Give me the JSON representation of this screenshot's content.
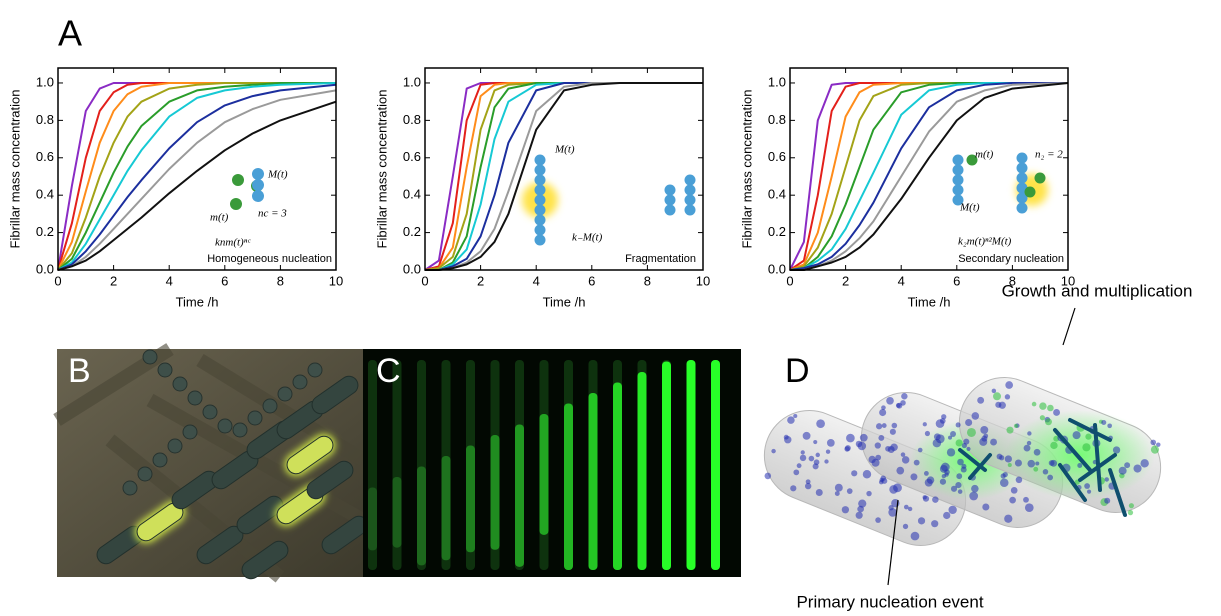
{
  "chart_data": [
    {
      "type": "line",
      "xlabel": "Time /h",
      "ylabel": "Fibrillar mass concentration",
      "x": [
        0,
        0.5,
        1,
        1.5,
        2,
        2.5,
        3,
        4,
        5,
        6,
        7,
        8,
        10
      ],
      "xlim": [
        0,
        10
      ],
      "ylim": [
        0,
        1.08
      ],
      "xticks": [
        0,
        2,
        4,
        6,
        8,
        10
      ],
      "yticks": [
        {
          "value": 0,
          "label": "0.0"
        },
        0.2,
        0.4,
        0.6,
        0.8,
        {
          "value": 1,
          "label": "1.0"
        }
      ],
      "annotations": [
        "M(t)",
        "m(t)",
        "nc = 3",
        "knm(t)ⁿᶜ",
        "Homogeneous nucleation"
      ],
      "series": [
        {
          "color": "#8a2bc4",
          "values": [
            0,
            0.45,
            0.85,
            0.97,
            1,
            1,
            1,
            1,
            1,
            1,
            1,
            1,
            1
          ]
        },
        {
          "color": "#e3201b",
          "values": [
            0,
            0.25,
            0.6,
            0.85,
            0.95,
            0.99,
            1,
            1,
            1,
            1,
            1,
            1,
            1
          ]
        },
        {
          "color": "#ff8c1a",
          "values": [
            0,
            0.15,
            0.42,
            0.68,
            0.85,
            0.94,
            0.98,
            1,
            1,
            1,
            1,
            1,
            1
          ]
        },
        {
          "color": "#a3a317",
          "values": [
            0,
            0.09,
            0.28,
            0.5,
            0.68,
            0.82,
            0.9,
            0.97,
            0.99,
            1,
            1,
            1,
            1
          ]
        },
        {
          "color": "#2a9d2a",
          "values": [
            0,
            0.06,
            0.2,
            0.36,
            0.52,
            0.66,
            0.77,
            0.9,
            0.96,
            0.98,
            0.99,
            1,
            1
          ]
        },
        {
          "color": "#16c9d4",
          "values": [
            0,
            0.04,
            0.14,
            0.27,
            0.4,
            0.53,
            0.64,
            0.82,
            0.92,
            0.96,
            0.98,
            0.99,
            1
          ]
        },
        {
          "color": "#1c2f9e",
          "values": [
            0,
            0.03,
            0.1,
            0.19,
            0.29,
            0.39,
            0.48,
            0.65,
            0.79,
            0.88,
            0.93,
            0.96,
            0.99
          ]
        },
        {
          "color": "#9a9a9a",
          "values": [
            0,
            0.02,
            0.07,
            0.14,
            0.22,
            0.3,
            0.38,
            0.54,
            0.68,
            0.79,
            0.86,
            0.91,
            0.96
          ]
        },
        {
          "color": "#111111",
          "values": [
            0,
            0.02,
            0.05,
            0.1,
            0.16,
            0.22,
            0.28,
            0.41,
            0.53,
            0.64,
            0.73,
            0.8,
            0.9
          ]
        }
      ]
    },
    {
      "type": "line",
      "xlabel": "Time /h",
      "ylabel": "Fibrillar mass concentration",
      "x": [
        0,
        0.5,
        1,
        1.5,
        2,
        2.5,
        3,
        4,
        5,
        6,
        7,
        8,
        10
      ],
      "xlim": [
        0,
        10
      ],
      "ylim": [
        0,
        1.08
      ],
      "xticks": [
        0,
        2,
        4,
        6,
        8,
        10
      ],
      "yticks": [
        {
          "value": 0,
          "label": "0.0"
        },
        0.2,
        0.4,
        0.6,
        0.8,
        {
          "value": 1,
          "label": "1.0"
        }
      ],
      "annotations": [
        "M(t)",
        "k₋M(t)",
        "Fragmentation"
      ],
      "series": [
        {
          "color": "#8a2bc4",
          "values": [
            0,
            0.05,
            0.5,
            0.97,
            1,
            1,
            1,
            1,
            1,
            1,
            1,
            1,
            1
          ]
        },
        {
          "color": "#e3201b",
          "values": [
            0,
            0.02,
            0.25,
            0.8,
            0.99,
            1,
            1,
            1,
            1,
            1,
            1,
            1,
            1
          ]
        },
        {
          "color": "#ff8c1a",
          "values": [
            0,
            0.01,
            0.12,
            0.55,
            0.93,
            0.99,
            1,
            1,
            1,
            1,
            1,
            1,
            1
          ]
        },
        {
          "color": "#a3a317",
          "values": [
            0,
            0.01,
            0.07,
            0.3,
            0.75,
            0.96,
            0.99,
            1,
            1,
            1,
            1,
            1,
            1
          ]
        },
        {
          "color": "#2a9d2a",
          "values": [
            0,
            0,
            0.04,
            0.18,
            0.55,
            0.87,
            0.97,
            1,
            1,
            1,
            1,
            1,
            1
          ]
        },
        {
          "color": "#16c9d4",
          "values": [
            0,
            0,
            0.03,
            0.11,
            0.35,
            0.7,
            0.9,
            0.99,
            1,
            1,
            1,
            1,
            1
          ]
        },
        {
          "color": "#1c2f9e",
          "values": [
            0,
            0,
            0.02,
            0.06,
            0.18,
            0.4,
            0.68,
            0.96,
            1,
            1,
            1,
            1,
            1
          ]
        },
        {
          "color": "#9a9a9a",
          "values": [
            0,
            0,
            0.01,
            0.04,
            0.1,
            0.22,
            0.42,
            0.85,
            0.98,
            1,
            1,
            1,
            1
          ]
        },
        {
          "color": "#111111",
          "values": [
            0,
            0,
            0.01,
            0.03,
            0.07,
            0.15,
            0.3,
            0.75,
            0.96,
            0.99,
            1,
            1,
            1
          ]
        }
      ]
    },
    {
      "type": "line",
      "xlabel": "Time /h",
      "ylabel": "Fibrillar mass concentration",
      "x": [
        0,
        0.5,
        1,
        1.5,
        2,
        2.5,
        3,
        4,
        5,
        6,
        7,
        8,
        10
      ],
      "xlim": [
        0,
        10
      ],
      "ylim": [
        0,
        1.08
      ],
      "xticks": [
        0,
        2,
        4,
        6,
        8,
        10
      ],
      "yticks": [
        {
          "value": 0,
          "label": "0.0"
        },
        0.2,
        0.4,
        0.6,
        0.8,
        {
          "value": 1,
          "label": "1.0"
        }
      ],
      "annotations": [
        "m(t)",
        "n₂ = 2",
        "M(t)",
        "k₂m(t)ⁿ²M(t)",
        "Secondary nucleation"
      ],
      "series": [
        {
          "color": "#8a2bc4",
          "values": [
            0,
            0.15,
            0.8,
            0.99,
            1,
            1,
            1,
            1,
            1,
            1,
            1,
            1,
            1
          ]
        },
        {
          "color": "#e3201b",
          "values": [
            0,
            0.05,
            0.4,
            0.85,
            0.98,
            1,
            1,
            1,
            1,
            1,
            1,
            1,
            1
          ]
        },
        {
          "color": "#ff8c1a",
          "values": [
            0,
            0.03,
            0.2,
            0.5,
            0.82,
            0.95,
            0.99,
            1,
            1,
            1,
            1,
            1,
            1
          ]
        },
        {
          "color": "#a3a317",
          "values": [
            0,
            0.02,
            0.12,
            0.3,
            0.55,
            0.8,
            0.93,
            0.99,
            1,
            1,
            1,
            1,
            1
          ]
        },
        {
          "color": "#2a9d2a",
          "values": [
            0,
            0.01,
            0.07,
            0.18,
            0.35,
            0.55,
            0.75,
            0.95,
            0.99,
            1,
            1,
            1,
            1
          ]
        },
        {
          "color": "#16c9d4",
          "values": [
            0,
            0.01,
            0.05,
            0.11,
            0.22,
            0.37,
            0.52,
            0.83,
            0.96,
            0.99,
            1,
            1,
            1
          ]
        },
        {
          "color": "#1c2f9e",
          "values": [
            0,
            0.01,
            0.03,
            0.07,
            0.14,
            0.24,
            0.36,
            0.65,
            0.87,
            0.96,
            0.99,
            1,
            1
          ]
        },
        {
          "color": "#9a9a9a",
          "values": [
            0,
            0,
            0.02,
            0.05,
            0.1,
            0.17,
            0.26,
            0.5,
            0.74,
            0.9,
            0.96,
            0.99,
            1
          ]
        },
        {
          "color": "#111111",
          "values": [
            0,
            0,
            0.02,
            0.04,
            0.07,
            0.12,
            0.19,
            0.38,
            0.6,
            0.8,
            0.92,
            0.97,
            1
          ]
        }
      ]
    }
  ],
  "figure": {
    "panel_labels": [
      "A",
      "B",
      "C",
      "D"
    ],
    "panel_d": {
      "top_label": "Growth and multiplication",
      "bottom_label": "Primary nucleation event"
    }
  }
}
